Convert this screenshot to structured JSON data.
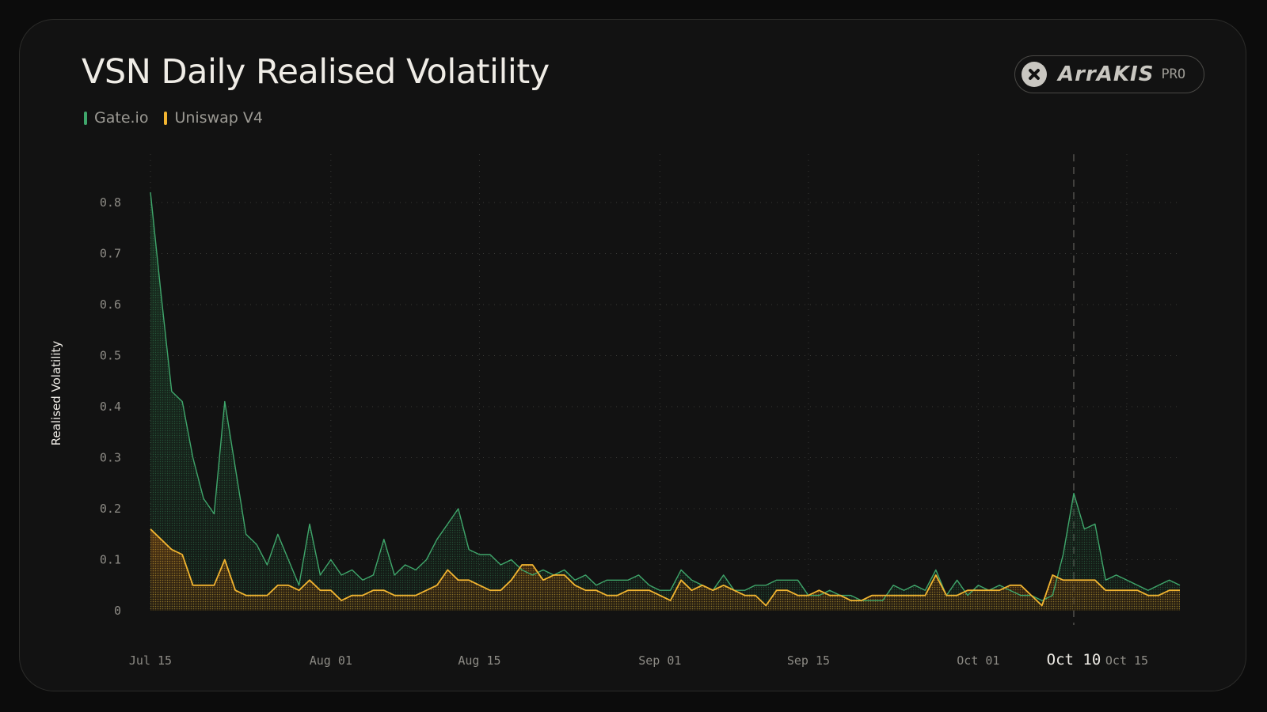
{
  "colors": {
    "background": "#121212",
    "gate": "#3fa66b",
    "uniswap": "#f2b430",
    "text": "#efece6",
    "muted": "#9c9a94"
  },
  "brand": {
    "name": "ArrAKIS",
    "tier": "PRO",
    "icon": "arrakis-x-icon"
  },
  "chart_data": {
    "type": "area",
    "title": "VSN Daily Realised Volatility",
    "xlabel": "",
    "ylabel": "Realised Volatility",
    "x_start": "2025-07-15",
    "x_end": "2025-10-20",
    "ylim": [
      0,
      0.85
    ],
    "y_ticks": [
      {
        "value": 0,
        "label": "0"
      },
      {
        "value": 0.1,
        "label": "0.1"
      },
      {
        "value": 0.2,
        "label": "0.2"
      },
      {
        "value": 0.3,
        "label": "0.3"
      },
      {
        "value": 0.4,
        "label": "0.4"
      },
      {
        "value": 0.5,
        "label": "0.5"
      },
      {
        "value": 0.6,
        "label": "0.6"
      },
      {
        "value": 0.7,
        "label": "0.7"
      },
      {
        "value": 0.8,
        "label": "0.8"
      }
    ],
    "x_ticks": [
      {
        "date": "2025-07-15",
        "label": "Jul 15"
      },
      {
        "date": "2025-08-01",
        "label": "Aug 01"
      },
      {
        "date": "2025-08-15",
        "label": "Aug 15"
      },
      {
        "date": "2025-09-01",
        "label": "Sep 01"
      },
      {
        "date": "2025-09-15",
        "label": "Sep 15"
      },
      {
        "date": "2025-10-01",
        "label": "Oct 01"
      },
      {
        "date": "2025-10-10",
        "label": "Oct 10",
        "highlight": true
      },
      {
        "date": "2025-10-15",
        "label": "Oct 15"
      }
    ],
    "grid": true,
    "legend": "top-left",
    "series": [
      {
        "name": "Gate.io",
        "color": "#3fa66b",
        "points": [
          [
            "2025-07-15",
            0.82
          ],
          [
            "2025-07-16",
            0.62
          ],
          [
            "2025-07-17",
            0.43
          ],
          [
            "2025-07-18",
            0.41
          ],
          [
            "2025-07-19",
            0.3
          ],
          [
            "2025-07-20",
            0.22
          ],
          [
            "2025-07-21",
            0.19
          ],
          [
            "2025-07-22",
            0.41
          ],
          [
            "2025-07-23",
            0.28
          ],
          [
            "2025-07-24",
            0.15
          ],
          [
            "2025-07-25",
            0.13
          ],
          [
            "2025-07-26",
            0.09
          ],
          [
            "2025-07-27",
            0.15
          ],
          [
            "2025-07-28",
            0.1
          ],
          [
            "2025-07-29",
            0.05
          ],
          [
            "2025-07-30",
            0.17
          ],
          [
            "2025-07-31",
            0.07
          ],
          [
            "2025-08-01",
            0.1
          ],
          [
            "2025-08-02",
            0.07
          ],
          [
            "2025-08-03",
            0.08
          ],
          [
            "2025-08-04",
            0.06
          ],
          [
            "2025-08-05",
            0.07
          ],
          [
            "2025-08-06",
            0.14
          ],
          [
            "2025-08-07",
            0.07
          ],
          [
            "2025-08-08",
            0.09
          ],
          [
            "2025-08-09",
            0.08
          ],
          [
            "2025-08-10",
            0.1
          ],
          [
            "2025-08-11",
            0.14
          ],
          [
            "2025-08-12",
            0.17
          ],
          [
            "2025-08-13",
            0.2
          ],
          [
            "2025-08-14",
            0.12
          ],
          [
            "2025-08-15",
            0.11
          ],
          [
            "2025-08-16",
            0.11
          ],
          [
            "2025-08-17",
            0.09
          ],
          [
            "2025-08-18",
            0.1
          ],
          [
            "2025-08-19",
            0.08
          ],
          [
            "2025-08-20",
            0.07
          ],
          [
            "2025-08-21",
            0.08
          ],
          [
            "2025-08-22",
            0.07
          ],
          [
            "2025-08-23",
            0.08
          ],
          [
            "2025-08-24",
            0.06
          ],
          [
            "2025-08-25",
            0.07
          ],
          [
            "2025-08-26",
            0.05
          ],
          [
            "2025-08-27",
            0.06
          ],
          [
            "2025-08-28",
            0.06
          ],
          [
            "2025-08-29",
            0.06
          ],
          [
            "2025-08-30",
            0.07
          ],
          [
            "2025-08-31",
            0.05
          ],
          [
            "2025-09-01",
            0.04
          ],
          [
            "2025-09-02",
            0.04
          ],
          [
            "2025-09-03",
            0.08
          ],
          [
            "2025-09-04",
            0.06
          ],
          [
            "2025-09-05",
            0.05
          ],
          [
            "2025-09-06",
            0.04
          ],
          [
            "2025-09-07",
            0.07
          ],
          [
            "2025-09-08",
            0.04
          ],
          [
            "2025-09-09",
            0.04
          ],
          [
            "2025-09-10",
            0.05
          ],
          [
            "2025-09-11",
            0.05
          ],
          [
            "2025-09-12",
            0.06
          ],
          [
            "2025-09-13",
            0.06
          ],
          [
            "2025-09-14",
            0.06
          ],
          [
            "2025-09-15",
            0.03
          ],
          [
            "2025-09-16",
            0.03
          ],
          [
            "2025-09-17",
            0.04
          ],
          [
            "2025-09-18",
            0.03
          ],
          [
            "2025-09-19",
            0.03
          ],
          [
            "2025-09-20",
            0.02
          ],
          [
            "2025-09-21",
            0.02
          ],
          [
            "2025-09-22",
            0.02
          ],
          [
            "2025-09-23",
            0.05
          ],
          [
            "2025-09-24",
            0.04
          ],
          [
            "2025-09-25",
            0.05
          ],
          [
            "2025-09-26",
            0.04
          ],
          [
            "2025-09-27",
            0.08
          ],
          [
            "2025-09-28",
            0.03
          ],
          [
            "2025-09-29",
            0.06
          ],
          [
            "2025-09-30",
            0.03
          ],
          [
            "2025-10-01",
            0.05
          ],
          [
            "2025-10-02",
            0.04
          ],
          [
            "2025-10-03",
            0.05
          ],
          [
            "2025-10-04",
            0.04
          ],
          [
            "2025-10-05",
            0.03
          ],
          [
            "2025-10-06",
            0.03
          ],
          [
            "2025-10-07",
            0.02
          ],
          [
            "2025-10-08",
            0.03
          ],
          [
            "2025-10-09",
            0.11
          ],
          [
            "2025-10-10",
            0.23
          ],
          [
            "2025-10-11",
            0.16
          ],
          [
            "2025-10-12",
            0.17
          ],
          [
            "2025-10-13",
            0.06
          ],
          [
            "2025-10-14",
            0.07
          ],
          [
            "2025-10-15",
            0.06
          ],
          [
            "2025-10-16",
            0.05
          ],
          [
            "2025-10-17",
            0.04
          ],
          [
            "2025-10-18",
            0.05
          ],
          [
            "2025-10-19",
            0.06
          ],
          [
            "2025-10-20",
            0.05
          ]
        ]
      },
      {
        "name": "Uniswap V4",
        "color": "#f2b430",
        "points": [
          [
            "2025-07-15",
            0.16
          ],
          [
            "2025-07-16",
            0.14
          ],
          [
            "2025-07-17",
            0.12
          ],
          [
            "2025-07-18",
            0.11
          ],
          [
            "2025-07-19",
            0.05
          ],
          [
            "2025-07-20",
            0.05
          ],
          [
            "2025-07-21",
            0.05
          ],
          [
            "2025-07-22",
            0.1
          ],
          [
            "2025-07-23",
            0.04
          ],
          [
            "2025-07-24",
            0.03
          ],
          [
            "2025-07-25",
            0.03
          ],
          [
            "2025-07-26",
            0.03
          ],
          [
            "2025-07-27",
            0.05
          ],
          [
            "2025-07-28",
            0.05
          ],
          [
            "2025-07-29",
            0.04
          ],
          [
            "2025-07-30",
            0.06
          ],
          [
            "2025-07-31",
            0.04
          ],
          [
            "2025-08-01",
            0.04
          ],
          [
            "2025-08-02",
            0.02
          ],
          [
            "2025-08-03",
            0.03
          ],
          [
            "2025-08-04",
            0.03
          ],
          [
            "2025-08-05",
            0.04
          ],
          [
            "2025-08-06",
            0.04
          ],
          [
            "2025-08-07",
            0.03
          ],
          [
            "2025-08-08",
            0.03
          ],
          [
            "2025-08-09",
            0.03
          ],
          [
            "2025-08-10",
            0.04
          ],
          [
            "2025-08-11",
            0.05
          ],
          [
            "2025-08-12",
            0.08
          ],
          [
            "2025-08-13",
            0.06
          ],
          [
            "2025-08-14",
            0.06
          ],
          [
            "2025-08-15",
            0.05
          ],
          [
            "2025-08-16",
            0.04
          ],
          [
            "2025-08-17",
            0.04
          ],
          [
            "2025-08-18",
            0.06
          ],
          [
            "2025-08-19",
            0.09
          ],
          [
            "2025-08-20",
            0.09
          ],
          [
            "2025-08-21",
            0.06
          ],
          [
            "2025-08-22",
            0.07
          ],
          [
            "2025-08-23",
            0.07
          ],
          [
            "2025-08-24",
            0.05
          ],
          [
            "2025-08-25",
            0.04
          ],
          [
            "2025-08-26",
            0.04
          ],
          [
            "2025-08-27",
            0.03
          ],
          [
            "2025-08-28",
            0.03
          ],
          [
            "2025-08-29",
            0.04
          ],
          [
            "2025-08-30",
            0.04
          ],
          [
            "2025-08-31",
            0.04
          ],
          [
            "2025-09-01",
            0.03
          ],
          [
            "2025-09-02",
            0.02
          ],
          [
            "2025-09-03",
            0.06
          ],
          [
            "2025-09-04",
            0.04
          ],
          [
            "2025-09-05",
            0.05
          ],
          [
            "2025-09-06",
            0.04
          ],
          [
            "2025-09-07",
            0.05
          ],
          [
            "2025-09-08",
            0.04
          ],
          [
            "2025-09-09",
            0.03
          ],
          [
            "2025-09-10",
            0.03
          ],
          [
            "2025-09-11",
            0.01
          ],
          [
            "2025-09-12",
            0.04
          ],
          [
            "2025-09-13",
            0.04
          ],
          [
            "2025-09-14",
            0.03
          ],
          [
            "2025-09-15",
            0.03
          ],
          [
            "2025-09-16",
            0.04
          ],
          [
            "2025-09-17",
            0.03
          ],
          [
            "2025-09-18",
            0.03
          ],
          [
            "2025-09-19",
            0.02
          ],
          [
            "2025-09-20",
            0.02
          ],
          [
            "2025-09-21",
            0.03
          ],
          [
            "2025-09-22",
            0.03
          ],
          [
            "2025-09-23",
            0.03
          ],
          [
            "2025-09-24",
            0.03
          ],
          [
            "2025-09-25",
            0.03
          ],
          [
            "2025-09-26",
            0.03
          ],
          [
            "2025-09-27",
            0.07
          ],
          [
            "2025-09-28",
            0.03
          ],
          [
            "2025-09-29",
            0.03
          ],
          [
            "2025-09-30",
            0.04
          ],
          [
            "2025-10-01",
            0.04
          ],
          [
            "2025-10-02",
            0.04
          ],
          [
            "2025-10-03",
            0.04
          ],
          [
            "2025-10-04",
            0.05
          ],
          [
            "2025-10-05",
            0.05
          ],
          [
            "2025-10-06",
            0.03
          ],
          [
            "2025-10-07",
            0.01
          ],
          [
            "2025-10-08",
            0.07
          ],
          [
            "2025-10-09",
            0.06
          ],
          [
            "2025-10-10",
            0.06
          ],
          [
            "2025-10-11",
            0.06
          ],
          [
            "2025-10-12",
            0.06
          ],
          [
            "2025-10-13",
            0.04
          ],
          [
            "2025-10-14",
            0.04
          ],
          [
            "2025-10-15",
            0.04
          ],
          [
            "2025-10-16",
            0.04
          ],
          [
            "2025-10-17",
            0.03
          ],
          [
            "2025-10-18",
            0.03
          ],
          [
            "2025-10-19",
            0.04
          ],
          [
            "2025-10-20",
            0.04
          ]
        ]
      }
    ]
  }
}
